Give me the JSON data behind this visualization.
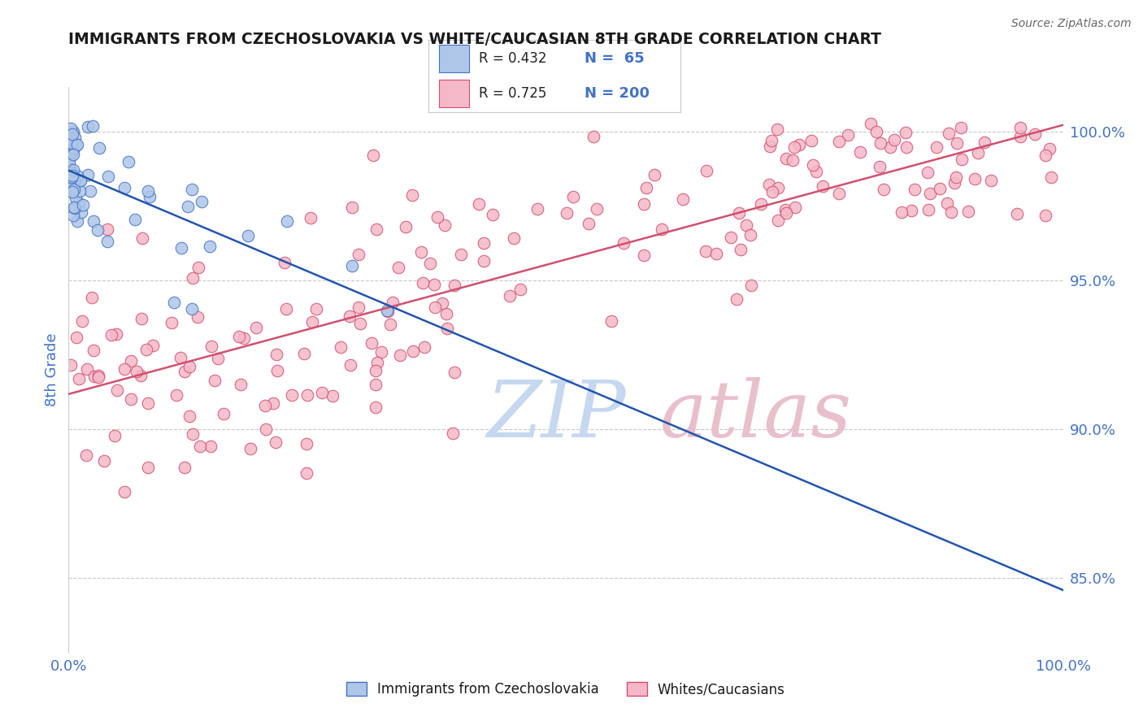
{
  "title": "IMMIGRANTS FROM CZECHOSLOVAKIA VS WHITE/CAUCASIAN 8TH GRADE CORRELATION CHART",
  "source_text": "Source: ZipAtlas.com",
  "ylabel": "8th Grade",
  "legend_r1": "R = 0.432",
  "legend_n1": "N =  65",
  "legend_r2": "R = 0.725",
  "legend_n2": "N = 200",
  "blue_color": "#aec6e8",
  "blue_edge_color": "#4472c4",
  "pink_color": "#f5b8c8",
  "pink_edge_color": "#d05070",
  "blue_line_color": "#2255aa",
  "pink_line_color": "#d05070",
  "title_color": "#1a1a1a",
  "source_color": "#666666",
  "axis_label_color": "#4472c4",
  "watermark_zip_color": "#c5d8ef",
  "watermark_atlas_color": "#e8c0cc",
  "background_color": "#ffffff",
  "xmin": 0.0,
  "xmax": 100.0,
  "ymin": 82.5,
  "ymax": 101.5,
  "right_yticks": [
    85.0,
    90.0,
    95.0,
    100.0
  ],
  "right_yticklabels": [
    "85.0%",
    "90.0%",
    "95.0%",
    "100.0%"
  ]
}
